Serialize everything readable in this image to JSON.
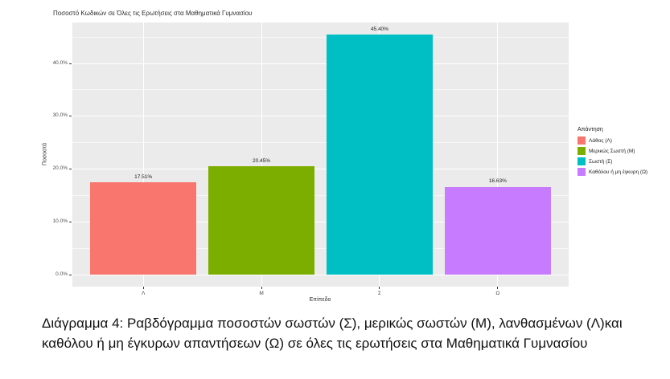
{
  "figure": {
    "title": "Ποσοστό Κωδικών σε Όλες τις Ερωτήσεις στα Μαθηματικά Γυμνασίου",
    "x_axis_title": "Επίπεδο",
    "y_axis_title": "Ποσοστά"
  },
  "chart_data": {
    "type": "bar",
    "title": "Ποσοστό Κωδικών σε Όλες τις Ερωτήσεις στα Μαθηματικά Γυμνασίου",
    "xlabel": "Επίπεδο",
    "ylabel": "Ποσοστά",
    "categories": [
      "Λ",
      "Μ",
      "Σ",
      "Ω"
    ],
    "values": [
      17.51,
      20.45,
      45.4,
      16.63
    ],
    "bar_labels": [
      "17.51%",
      "20.45%",
      "45.40%",
      "16.63%"
    ],
    "bar_colors": [
      "#F8766D",
      "#7CAE00",
      "#00BFC4",
      "#C77CFF"
    ],
    "y_ticks": [
      {
        "value": 0,
        "label": "0.0%"
      },
      {
        "value": 10,
        "label": "10.0%"
      },
      {
        "value": 20,
        "label": "20.0%"
      },
      {
        "value": 30,
        "label": "30.0%"
      },
      {
        "value": 40,
        "label": "40.0%"
      }
    ],
    "y_minor_ticks": [
      5,
      15,
      25,
      35,
      45
    ],
    "ylim": [
      0,
      47.7
    ],
    "grid": true,
    "legend_position": "right",
    "panel_background": "#EBEBEB",
    "gridline_color": "#FFFFFF"
  },
  "legend": {
    "title": "Απάντηση",
    "items": [
      {
        "label": "Λάθος (Λ)",
        "color": "#F8766D"
      },
      {
        "label": "Μερικώς Σωστή (Μ)",
        "color": "#7CAE00"
      },
      {
        "label": "Σωστή (Σ)",
        "color": "#00BFC4"
      },
      {
        "label": "Καθόλου ή μη έγκυρη (Ω)",
        "color": "#C77CFF"
      }
    ]
  },
  "caption": "Διάγραμμα 4: Ραβδόγραμμα ποσοστών σωστών (Σ), μερικώς σωστών (Μ), λανθασμένων (Λ)και καθόλου ή μη έγκυρων απαντήσεων (Ω) σε όλες τις ερωτήσεις στα Μαθηματικά Γυμνασίου"
}
